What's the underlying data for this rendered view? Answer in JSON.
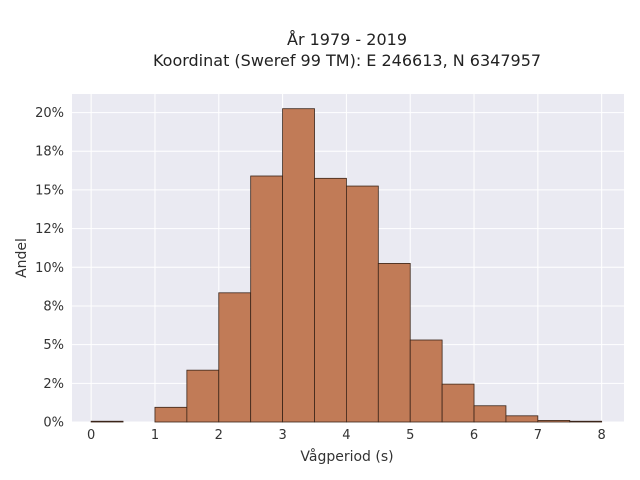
{
  "chart_data": {
    "type": "histogram",
    "title_line1": "År 1979 - 2019",
    "title_line2": "Koordinat (Sweref 99 TM): E 246613, N 6347957",
    "xlabel": "Vågperiod (s)",
    "ylabel": "Andel",
    "xlim": [
      -0.3,
      8.35
    ],
    "ylim": [
      0,
      0.212
    ],
    "xticks": [
      {
        "value": 0,
        "label": "0"
      },
      {
        "value": 1,
        "label": "1"
      },
      {
        "value": 2,
        "label": "2"
      },
      {
        "value": 3,
        "label": "3"
      },
      {
        "value": 4,
        "label": "4"
      },
      {
        "value": 5,
        "label": "5"
      },
      {
        "value": 6,
        "label": "6"
      },
      {
        "value": 7,
        "label": "7"
      },
      {
        "value": 8,
        "label": "8"
      }
    ],
    "yticks": [
      {
        "value": 0.0,
        "label": "0%"
      },
      {
        "value": 0.025,
        "label": "2%"
      },
      {
        "value": 0.05,
        "label": "5%"
      },
      {
        "value": 0.075,
        "label": "8%"
      },
      {
        "value": 0.1,
        "label": "10%"
      },
      {
        "value": 0.125,
        "label": "12%"
      },
      {
        "value": 0.15,
        "label": "15%"
      },
      {
        "value": 0.175,
        "label": "18%"
      },
      {
        "value": 0.2,
        "label": "20%"
      }
    ],
    "bins": [
      {
        "x0": 0.0,
        "x1": 0.5,
        "value": 0.0005
      },
      {
        "x0": 0.5,
        "x1": 1.0,
        "value": 0.0
      },
      {
        "x0": 1.0,
        "x1": 1.5,
        "value": 0.0095
      },
      {
        "x0": 1.5,
        "x1": 2.0,
        "value": 0.0335
      },
      {
        "x0": 2.0,
        "x1": 2.5,
        "value": 0.0835
      },
      {
        "x0": 2.5,
        "x1": 3.0,
        "value": 0.159
      },
      {
        "x0": 3.0,
        "x1": 3.5,
        "value": 0.2025
      },
      {
        "x0": 3.5,
        "x1": 4.0,
        "value": 0.1575
      },
      {
        "x0": 4.0,
        "x1": 4.5,
        "value": 0.1525
      },
      {
        "x0": 4.5,
        "x1": 5.0,
        "value": 0.1025
      },
      {
        "x0": 5.0,
        "x1": 5.5,
        "value": 0.053
      },
      {
        "x0": 5.5,
        "x1": 6.0,
        "value": 0.0245
      },
      {
        "x0": 6.0,
        "x1": 6.5,
        "value": 0.0105
      },
      {
        "x0": 6.5,
        "x1": 7.0,
        "value": 0.004
      },
      {
        "x0": 7.0,
        "x1": 7.5,
        "value": 0.001
      },
      {
        "x0": 7.5,
        "x1": 8.0,
        "value": 0.0005
      }
    ],
    "grid": true,
    "bar_color": "#c17b57",
    "bar_edge_color": "#3a2418",
    "plot_background": "#eaeaf2",
    "grid_color": "#ffffff"
  }
}
